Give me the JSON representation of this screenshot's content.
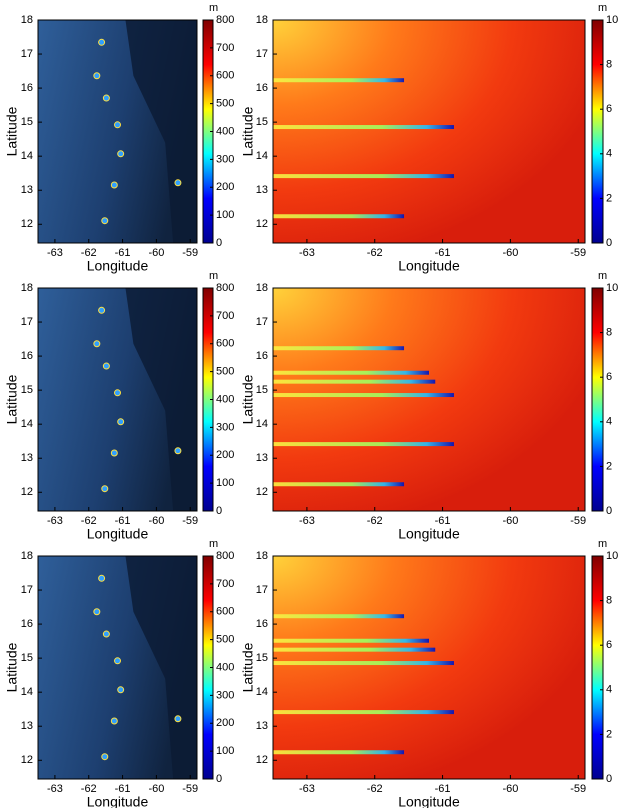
{
  "chart_data": [
    {
      "type": "map",
      "xlabel": "Longitude",
      "ylabel": "Latitude",
      "xlim": [
        -63.5,
        -58.8
      ],
      "ylim": [
        11.45,
        18
      ],
      "xticks": [
        -63,
        -62,
        -61,
        -60,
        -59
      ],
      "yticks": [
        12,
        13,
        14,
        15,
        16,
        17,
        18
      ],
      "colorbar": {
        "label": "m",
        "lim": [
          0,
          800
        ],
        "ticks": [
          0,
          100,
          200,
          300,
          400,
          500,
          600,
          700,
          800
        ],
        "colors": [
          "#00008f",
          "#0000ff",
          "#00ffff",
          "#ffff00",
          "#ff0000",
          "#800000"
        ]
      }
    },
    {
      "type": "heatmap",
      "xlabel": "Longitude",
      "ylabel": "Latitude",
      "xlim": [
        -63.5,
        -58.9
      ],
      "ylim": [
        11.45,
        18
      ],
      "xticks": [
        -63,
        -62,
        -61,
        -60,
        -59
      ],
      "yticks": [
        12,
        13,
        14,
        15,
        16,
        17,
        18
      ],
      "colorbar": {
        "label": "m",
        "lim": [
          0,
          10
        ],
        "ticks": [
          0,
          2,
          4,
          6,
          8,
          10
        ],
        "colors": [
          "#00008f",
          "#0000ff",
          "#00ffff",
          "#ffff00",
          "#ff0000",
          "#800000"
        ]
      }
    },
    {
      "type": "map",
      "xlabel": "Longitude",
      "ylabel": "Latitude",
      "xlim": [
        -63.5,
        -58.8
      ],
      "ylim": [
        11.45,
        18
      ],
      "xticks": [
        -63,
        -62,
        -61,
        -60,
        -59
      ],
      "yticks": [
        12,
        13,
        14,
        15,
        16,
        17,
        18
      ],
      "colorbar": {
        "label": "m",
        "lim": [
          0,
          800
        ],
        "ticks": [
          0,
          100,
          200,
          300,
          400,
          500,
          600,
          700,
          800
        ],
        "colors": [
          "#00008f",
          "#0000ff",
          "#00ffff",
          "#ffff00",
          "#ff0000",
          "#800000"
        ]
      }
    },
    {
      "type": "heatmap",
      "xlabel": "Longitude",
      "ylabel": "Latitude",
      "xlim": [
        -63.5,
        -58.9
      ],
      "ylim": [
        11.45,
        18
      ],
      "xticks": [
        -63,
        -62,
        -61,
        -60,
        -59
      ],
      "yticks": [
        12,
        13,
        14,
        15,
        16,
        17,
        18
      ],
      "colorbar": {
        "label": "m",
        "lim": [
          0,
          10
        ],
        "ticks": [
          0,
          2,
          4,
          6,
          8,
          10
        ],
        "colors": [
          "#00008f",
          "#0000ff",
          "#00ffff",
          "#ffff00",
          "#ff0000",
          "#800000"
        ]
      }
    },
    {
      "type": "map",
      "xlabel": "Longitude",
      "ylabel": "Latitude",
      "xlim": [
        -63.5,
        -58.8
      ],
      "ylim": [
        11.45,
        18
      ],
      "xticks": [
        -63,
        -62,
        -61,
        -60,
        -59
      ],
      "yticks": [
        12,
        13,
        14,
        15,
        16,
        17,
        18
      ],
      "colorbar": {
        "label": "m",
        "lim": [
          0,
          800
        ],
        "ticks": [
          0,
          100,
          200,
          300,
          400,
          500,
          600,
          700,
          800
        ],
        "colors": [
          "#00008f",
          "#0000ff",
          "#00ffff",
          "#ffff00",
          "#ff0000",
          "#800000"
        ]
      }
    },
    {
      "type": "heatmap",
      "xlabel": "Longitude",
      "ylabel": "Latitude",
      "xlim": [
        -63.5,
        -58.9
      ],
      "ylim": [
        11.45,
        18
      ],
      "xticks": [
        -63,
        -62,
        -61,
        -60,
        -59
      ],
      "yticks": [
        12,
        13,
        14,
        15,
        16,
        17,
        18
      ],
      "colorbar": {
        "label": "m",
        "lim": [
          0,
          10
        ],
        "ticks": [
          0,
          2,
          4,
          6,
          8,
          10
        ],
        "colors": [
          "#00008f",
          "#0000ff",
          "#00ffff",
          "#ffff00",
          "#ff0000",
          "#800000"
        ]
      }
    }
  ]
}
